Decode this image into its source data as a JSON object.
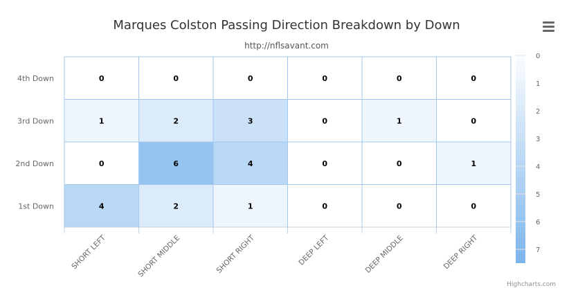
{
  "chart_data": {
    "type": "heatmap",
    "title": "Marques Colston Passing Direction Breakdown by Down",
    "subtitle": "http://nflsavant.com",
    "categories_x": [
      "SHORT LEFT",
      "SHORT MIDDLE",
      "SHORT RIGHT",
      "DEEP LEFT",
      "DEEP MIDDLE",
      "DEEP RIGHT"
    ],
    "categories_y": [
      "4th Down",
      "3rd Down",
      "2nd Down",
      "1st Down"
    ],
    "values": [
      [
        0,
        0,
        0,
        0,
        0,
        0
      ],
      [
        1,
        2,
        3,
        0,
        1,
        0
      ],
      [
        0,
        6,
        4,
        0,
        0,
        1
      ],
      [
        4,
        2,
        1,
        0,
        0,
        0
      ]
    ],
    "color_axis": {
      "min": 0,
      "max": 7.5,
      "ticks": [
        0,
        1,
        2,
        3,
        4,
        5,
        6,
        7
      ],
      "min_color": "#ffffff",
      "max_color": "#7cb5ec"
    },
    "cell_border_color": "#a3c8ee",
    "credits": "Highcharts.com"
  }
}
